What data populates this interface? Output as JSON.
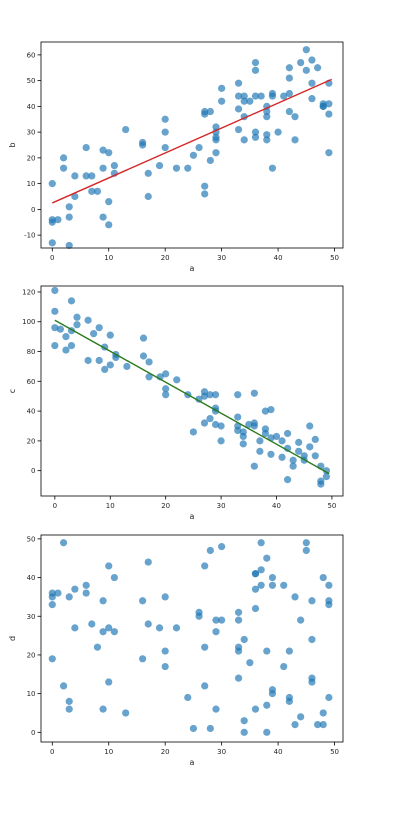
{
  "colors": {
    "points": "#1f77b4",
    "fit_ab": "#d62728",
    "fit_ac": "#2a7a1e"
  },
  "chart_data": [
    {
      "type": "scatter",
      "title": "",
      "xlabel": "a",
      "ylabel": "b",
      "xlim": [
        -2,
        51.5
      ],
      "ylim": [
        -15,
        65
      ],
      "xticks": [
        0,
        10,
        20,
        30,
        40,
        50
      ],
      "yticks": [
        -10,
        0,
        10,
        20,
        30,
        40,
        50,
        60
      ],
      "grid": false,
      "fit_line": {
        "x": [
          0,
          49.5
        ],
        "y": [
          2.5,
          50.5
        ],
        "color": "#d62728"
      },
      "points": [
        [
          0,
          10
        ],
        [
          0,
          -4
        ],
        [
          0,
          -5
        ],
        [
          0,
          -13
        ],
        [
          1,
          -4
        ],
        [
          2,
          16
        ],
        [
          2,
          20
        ],
        [
          3,
          -3
        ],
        [
          3,
          1
        ],
        [
          3,
          -14
        ],
        [
          4,
          5
        ],
        [
          4,
          13
        ],
        [
          6,
          24
        ],
        [
          6,
          13
        ],
        [
          7,
          13
        ],
        [
          7,
          7
        ],
        [
          8,
          7
        ],
        [
          9,
          23
        ],
        [
          9,
          16
        ],
        [
          9,
          -3
        ],
        [
          10,
          22
        ],
        [
          10,
          -6
        ],
        [
          10,
          3
        ],
        [
          11,
          17
        ],
        [
          11,
          14
        ],
        [
          13,
          31
        ],
        [
          16,
          26
        ],
        [
          16,
          25
        ],
        [
          17,
          14
        ],
        [
          17,
          5
        ],
        [
          19,
          17
        ],
        [
          20,
          30
        ],
        [
          20,
          35
        ],
        [
          20,
          24
        ],
        [
          22,
          16
        ],
        [
          24,
          16
        ],
        [
          25,
          21
        ],
        [
          26,
          24
        ],
        [
          27,
          38
        ],
        [
          27,
          37
        ],
        [
          27,
          9
        ],
        [
          27,
          6
        ],
        [
          28,
          38
        ],
        [
          28,
          19
        ],
        [
          29,
          32
        ],
        [
          29,
          30
        ],
        [
          29,
          22
        ],
        [
          29,
          27
        ],
        [
          29,
          28
        ],
        [
          30,
          47
        ],
        [
          30,
          42
        ],
        [
          33,
          49
        ],
        [
          33,
          44
        ],
        [
          33,
          39
        ],
        [
          33,
          31
        ],
        [
          34,
          44
        ],
        [
          34,
          42
        ],
        [
          34,
          36
        ],
        [
          34,
          27
        ],
        [
          35,
          42
        ],
        [
          36,
          57
        ],
        [
          36,
          54
        ],
        [
          36,
          44
        ],
        [
          36,
          30
        ],
        [
          36,
          28
        ],
        [
          37,
          44
        ],
        [
          38,
          40
        ],
        [
          38,
          38
        ],
        [
          38,
          36
        ],
        [
          38,
          29
        ],
        [
          38,
          27
        ],
        [
          39,
          44
        ],
        [
          39,
          45
        ],
        [
          39,
          16
        ],
        [
          40,
          30
        ],
        [
          41,
          44
        ],
        [
          42,
          55
        ],
        [
          42,
          51
        ],
        [
          42,
          45
        ],
        [
          42,
          38
        ],
        [
          43,
          27
        ],
        [
          43,
          36
        ],
        [
          44,
          57
        ],
        [
          45,
          62
        ],
        [
          45,
          54
        ],
        [
          46,
          58
        ],
        [
          46,
          49
        ],
        [
          46,
          43
        ],
        [
          47,
          55
        ],
        [
          48,
          41
        ],
        [
          48,
          40
        ],
        [
          48,
          40
        ],
        [
          49,
          49
        ],
        [
          49,
          37
        ],
        [
          49,
          41
        ],
        [
          49,
          22
        ]
      ]
    },
    {
      "type": "scatter",
      "title": "",
      "xlabel": "a",
      "ylabel": "c",
      "xlim": [
        -2.5,
        52
      ],
      "ylim": [
        -17,
        124
      ],
      "xticks": [
        0,
        10,
        20,
        30,
        40,
        50
      ],
      "yticks": [
        0,
        20,
        40,
        60,
        80,
        100,
        120
      ],
      "grid": false,
      "fit_line": {
        "x": [
          0,
          49.5
        ],
        "y": [
          101,
          -2
        ],
        "color": "#2a7a1e"
      },
      "points": [
        [
          0,
          121
        ],
        [
          0,
          107
        ],
        [
          0,
          96
        ],
        [
          0,
          84
        ],
        [
          1,
          95
        ],
        [
          2,
          90
        ],
        [
          2,
          81
        ],
        [
          3,
          114
        ],
        [
          3,
          84
        ],
        [
          3,
          94
        ],
        [
          4,
          103
        ],
        [
          4,
          98
        ],
        [
          6,
          101
        ],
        [
          6,
          74
        ],
        [
          7,
          92
        ],
        [
          8,
          96
        ],
        [
          8,
          74
        ],
        [
          9,
          83
        ],
        [
          9,
          68
        ],
        [
          10,
          91
        ],
        [
          10,
          71
        ],
        [
          11,
          76
        ],
        [
          11,
          78
        ],
        [
          13,
          70
        ],
        [
          16,
          89
        ],
        [
          16,
          77
        ],
        [
          17,
          73
        ],
        [
          17,
          63
        ],
        [
          19,
          63
        ],
        [
          20,
          55
        ],
        [
          20,
          51
        ],
        [
          20,
          65
        ],
        [
          22,
          61
        ],
        [
          24,
          51
        ],
        [
          25,
          26
        ],
        [
          26,
          48
        ],
        [
          27,
          53
        ],
        [
          27,
          50
        ],
        [
          27,
          32
        ],
        [
          28,
          51
        ],
        [
          28,
          35
        ],
        [
          29,
          51
        ],
        [
          29,
          42
        ],
        [
          29,
          40
        ],
        [
          29,
          31
        ],
        [
          30,
          30
        ],
        [
          30,
          20
        ],
        [
          33,
          51
        ],
        [
          33,
          36
        ],
        [
          33,
          30
        ],
        [
          33,
          27
        ],
        [
          34,
          26
        ],
        [
          34,
          23
        ],
        [
          34,
          18
        ],
        [
          35,
          31
        ],
        [
          36,
          52
        ],
        [
          36,
          32
        ],
        [
          36,
          30
        ],
        [
          36,
          3
        ],
        [
          37,
          13
        ],
        [
          37,
          20
        ],
        [
          38,
          28
        ],
        [
          38,
          40
        ],
        [
          38,
          25
        ],
        [
          39,
          41
        ],
        [
          39,
          22
        ],
        [
          39,
          11
        ],
        [
          40,
          23
        ],
        [
          41,
          9
        ],
        [
          41,
          20
        ],
        [
          42,
          25
        ],
        [
          42,
          15
        ],
        [
          42,
          -6
        ],
        [
          43,
          7
        ],
        [
          43,
          3
        ],
        [
          44,
          13
        ],
        [
          44,
          19
        ],
        [
          45,
          10
        ],
        [
          45,
          7
        ],
        [
          46,
          30
        ],
        [
          46,
          16
        ],
        [
          47,
          21
        ],
        [
          47,
          10
        ],
        [
          48,
          3
        ],
        [
          48,
          -7
        ],
        [
          48,
          -9
        ],
        [
          49,
          0
        ],
        [
          49,
          -4
        ]
      ]
    },
    {
      "type": "scatter",
      "title": "",
      "xlabel": "a",
      "ylabel": "d",
      "xlim": [
        -2,
        51.5
      ],
      "ylim": [
        -2.5,
        51
      ],
      "xticks": [
        0,
        10,
        20,
        30,
        40,
        50
      ],
      "yticks": [
        0,
        10,
        20,
        30,
        40,
        50
      ],
      "grid": false,
      "fit_line": null,
      "points": [
        [
          0,
          36
        ],
        [
          0,
          35
        ],
        [
          0,
          33
        ],
        [
          0,
          19
        ],
        [
          1,
          36
        ],
        [
          2,
          49
        ],
        [
          2,
          12
        ],
        [
          3,
          35
        ],
        [
          3,
          8
        ],
        [
          3,
          6
        ],
        [
          4,
          37
        ],
        [
          4,
          27
        ],
        [
          6,
          38
        ],
        [
          6,
          36
        ],
        [
          7,
          28
        ],
        [
          8,
          22
        ],
        [
          9,
          34
        ],
        [
          9,
          26
        ],
        [
          9,
          6
        ],
        [
          10,
          43
        ],
        [
          10,
          27
        ],
        [
          10,
          13
        ],
        [
          11,
          40
        ],
        [
          11,
          26
        ],
        [
          13,
          5
        ],
        [
          16,
          34
        ],
        [
          16,
          19
        ],
        [
          17,
          44
        ],
        [
          17,
          28
        ],
        [
          19,
          27
        ],
        [
          20,
          35
        ],
        [
          20,
          21
        ],
        [
          20,
          17
        ],
        [
          22,
          27
        ],
        [
          24,
          9
        ],
        [
          25,
          1
        ],
        [
          26,
          31
        ],
        [
          26,
          30
        ],
        [
          27,
          43
        ],
        [
          27,
          22
        ],
        [
          27,
          12
        ],
        [
          28,
          47
        ],
        [
          28,
          1
        ],
        [
          29,
          29
        ],
        [
          29,
          26
        ],
        [
          29,
          6
        ],
        [
          30,
          48
        ],
        [
          30,
          29
        ],
        [
          33,
          31
        ],
        [
          33,
          29
        ],
        [
          33,
          22
        ],
        [
          33,
          21
        ],
        [
          33,
          14
        ],
        [
          34,
          24
        ],
        [
          34,
          3
        ],
        [
          34,
          0
        ],
        [
          35,
          18
        ],
        [
          36,
          41
        ],
        [
          36,
          41
        ],
        [
          36,
          37
        ],
        [
          36,
          32
        ],
        [
          36,
          6
        ],
        [
          37,
          49
        ],
        [
          37,
          42
        ],
        [
          37,
          38
        ],
        [
          38,
          21
        ],
        [
          38,
          7
        ],
        [
          38,
          45
        ],
        [
          38,
          0
        ],
        [
          39,
          40
        ],
        [
          39,
          38
        ],
        [
          39,
          11
        ],
        [
          39,
          10
        ],
        [
          41,
          38
        ],
        [
          41,
          17
        ],
        [
          42,
          21
        ],
        [
          42,
          9
        ],
        [
          42,
          8
        ],
        [
          43,
          35
        ],
        [
          43,
          2
        ],
        [
          44,
          29
        ],
        [
          44,
          4
        ],
        [
          45,
          49
        ],
        [
          45,
          47
        ],
        [
          46,
          34
        ],
        [
          46,
          24
        ],
        [
          46,
          14
        ],
        [
          46,
          13
        ],
        [
          47,
          2
        ],
        [
          48,
          40
        ],
        [
          48,
          5
        ],
        [
          48,
          2
        ],
        [
          49,
          38
        ],
        [
          49,
          34
        ],
        [
          49,
          33
        ],
        [
          49,
          9
        ]
      ]
    }
  ]
}
